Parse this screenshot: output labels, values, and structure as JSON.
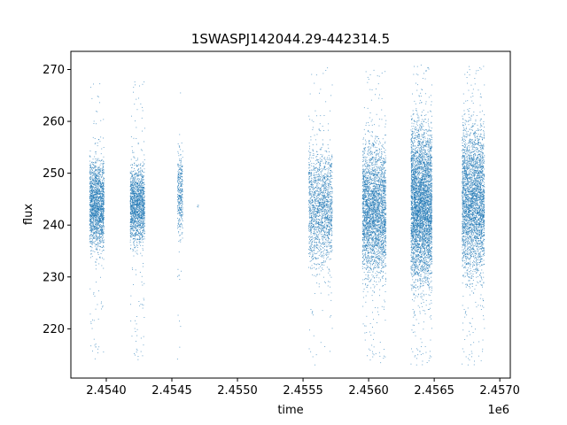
{
  "chart_data": {
    "type": "scatter",
    "title": "1SWASPJ142044.29-442314.5",
    "xlabel": "time",
    "ylabel": "flux",
    "x_offset_label": "1e6",
    "xlim": [
      2453730,
      2457080
    ],
    "ylim": [
      210.5,
      273.5
    ],
    "grid": false,
    "marker_color": "#1f77b4",
    "x_ticks": [
      2454000,
      2454500,
      2455000,
      2455500,
      2456000,
      2456500,
      2457000
    ],
    "x_tick_labels": [
      "2.4540",
      "2.4545",
      "2.4550",
      "2.4555",
      "2.4560",
      "2.4565",
      "2.4570"
    ],
    "y_ticks": [
      220,
      230,
      240,
      250,
      260,
      270
    ],
    "y_tick_labels": [
      "220",
      "230",
      "240",
      "250",
      "260",
      "270"
    ],
    "point_groups": [
      {
        "x_range": [
          2453870,
          2453980
        ],
        "y_core": [
          234,
          254
        ],
        "y_tail": [
          214,
          269
        ],
        "density": 1800
      },
      {
        "x_range": [
          2454180,
          2454290
        ],
        "y_core": [
          235,
          253
        ],
        "y_tail": [
          214,
          268
        ],
        "density": 1600
      },
      {
        "x_range": [
          2454540,
          2454580
        ],
        "y_core": [
          237,
          256
        ],
        "y_tail": [
          214,
          268
        ],
        "density": 350
      },
      {
        "x_range": [
          2454690,
          2454700
        ],
        "y_core": [
          243,
          245
        ],
        "y_tail": [
          243,
          245
        ],
        "density": 4
      },
      {
        "x_range": [
          2455540,
          2455720
        ],
        "y_core": [
          230,
          257
        ],
        "y_tail": [
          213,
          271
        ],
        "density": 1700
      },
      {
        "x_range": [
          2455950,
          2456130
        ],
        "y_core": [
          228,
          258
        ],
        "y_tail": [
          213,
          270
        ],
        "density": 3000
      },
      {
        "x_range": [
          2456320,
          2456480
        ],
        "y_core": [
          226,
          262
        ],
        "y_tail": [
          213,
          271
        ],
        "density": 4200
      },
      {
        "x_range": [
          2456710,
          2456880
        ],
        "y_core": [
          228,
          262
        ],
        "y_tail": [
          213,
          271
        ],
        "density": 3200
      }
    ]
  }
}
